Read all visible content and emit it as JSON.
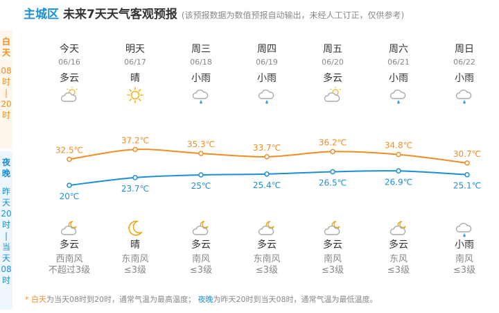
{
  "header": {
    "city": "主城区",
    "title": "未来7天天气客观预报",
    "note": "(该预报数据为数值预报自动输出，未经人工订正，仅供参考)"
  },
  "side": {
    "day_label": "白天",
    "day_range": [
      "08",
      "时",
      "|",
      "20",
      "时"
    ],
    "night_label": "夜晚",
    "night_range": [
      "昨",
      "天",
      "20",
      "时",
      "|",
      "当",
      "天",
      "08",
      "时"
    ]
  },
  "colors": {
    "day": "#f08d23",
    "night": "#1a8fd6"
  },
  "days": [
    {
      "name": "今天",
      "date": "06/16",
      "day_weather": "多云",
      "day_icon": "cloudy-sun-icon",
      "night_weather": "多云",
      "night_icon": "cloudy-moon-icon",
      "wind_dir": "西南风",
      "wind_level": "不超过3级"
    },
    {
      "name": "明天",
      "date": "06/17",
      "day_weather": "晴",
      "day_icon": "sun-icon",
      "night_weather": "晴",
      "night_icon": "moon-icon",
      "wind_dir": "东南风",
      "wind_level": "≤3级"
    },
    {
      "name": "周三",
      "date": "06/18",
      "day_weather": "小雨",
      "day_icon": "rain-icon",
      "night_weather": "多云",
      "night_icon": "cloudy-moon-icon",
      "wind_dir": "南风",
      "wind_level": "≤3级"
    },
    {
      "name": "周四",
      "date": "06/19",
      "day_weather": "小雨",
      "day_icon": "rain-icon",
      "night_weather": "多云",
      "night_icon": "cloudy-moon-icon",
      "wind_dir": "东南风",
      "wind_level": "≤3级"
    },
    {
      "name": "周五",
      "date": "06/20",
      "day_weather": "多云",
      "day_icon": "cloudy-sun-icon",
      "night_weather": "多云",
      "night_icon": "cloudy-moon-icon",
      "wind_dir": "南风",
      "wind_level": "≤3级"
    },
    {
      "name": "周六",
      "date": "06/21",
      "day_weather": "小雨",
      "day_icon": "rain-icon",
      "night_weather": "多云",
      "night_icon": "cloudy-moon-icon",
      "wind_dir": "东风",
      "wind_level": "≤3级"
    },
    {
      "name": "周日",
      "date": "06/22",
      "day_weather": "小雨",
      "day_icon": "rain-icon",
      "night_weather": "小雨",
      "night_icon": "rain-icon",
      "wind_dir": "南风",
      "wind_level": "≤3级"
    }
  ],
  "chart_data": {
    "type": "line",
    "categories": [
      "今天",
      "明天",
      "周三",
      "周四",
      "周五",
      "周六",
      "周日"
    ],
    "series": [
      {
        "values": [
          32.5,
          37.2,
          35.3,
          33.7,
          36.2,
          34.8,
          30.7
        ],
        "labels": [
          "32.5℃",
          "37.2℃",
          "35.3℃",
          "33.7℃",
          "36.2℃",
          "34.8℃",
          "30.7℃"
        ]
      },
      {
        "values": [
          20,
          23.7,
          25,
          25.4,
          26.5,
          26.9,
          25.1
        ],
        "labels": [
          "20℃",
          "23.7℃",
          "25℃",
          "25.4℃",
          "26.5℃",
          "26.9℃",
          "25.1℃"
        ]
      }
    ]
  },
  "footer": {
    "star": "* ",
    "day_term": "白天",
    "day_desc": "为当天08时到20时，通常气温为最高温度；",
    "night_term": "夜晚",
    "night_desc": "为昨天20时到当天08时，通常气温为最低温度。"
  }
}
